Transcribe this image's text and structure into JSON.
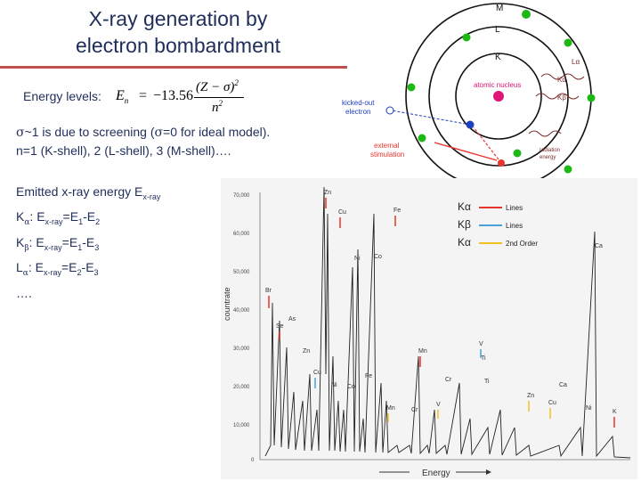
{
  "title": {
    "line1": "X-ray generation by",
    "line2": "electron bombardment"
  },
  "energy_levels": {
    "label": "Energy levels:",
    "formula": {
      "lhs": "E",
      "lhs_sub": "n",
      "equals": "=",
      "coef": "−13.56",
      "numerator": "(Z − σ)",
      "num_exp": "2",
      "denominator": "n",
      "den_exp": "2"
    }
  },
  "screening": {
    "line1_a": "~1 is due to screening (",
    "line1_b": "=0 for ideal model).",
    "line2": "n=1 (K-shell), 2 (L-shell), 3 (M-shell)…."
  },
  "emitted": {
    "heading": "Emitted x-ray energy E",
    "heading_sub": "x-ray",
    "lines": [
      {
        "greek": "α",
        "prefix": "K",
        "text": ": E",
        "sub1": "x-ray",
        "eq": "=E",
        "sub2": "1",
        "minus": "-E",
        "sub3": "2"
      },
      {
        "greek": "β",
        "prefix": "K",
        "text": ": E",
        "sub1": "x-ray",
        "eq": "=E",
        "sub2": "1",
        "minus": "-E",
        "sub3": "3"
      },
      {
        "greek": "α",
        "prefix": "L",
        "text": ": E",
        "sub1": "x-ray",
        "eq": "=E",
        "sub2": "2",
        "minus": "-E",
        "sub3": "3"
      }
    ],
    "ellipsis": "…."
  },
  "atom_diagram": {
    "shells": [
      "M",
      "L",
      "K"
    ],
    "nucleus_label": "atomic nucleus",
    "kicked_out_label_1": "kicked-out",
    "kicked_out_label_2": "electron",
    "external_label_1": "external",
    "external_label_2": "stimulation",
    "radiation_label_1": "radiation",
    "radiation_label_2": "energy",
    "transitions": [
      "Lα",
      "Kα",
      "Kβ"
    ],
    "colors": {
      "electron": "#1eb814",
      "nucleus": "#e0157a",
      "vacancy": "#1f3fbf",
      "incoming": "#e8352b",
      "wave": "#7a2a2a"
    }
  },
  "spectrum": {
    "ylabel": "countrate",
    "xlabel": "Energy",
    "yticks": [
      "70,000",
      "60,000",
      "50,000",
      "40,000",
      "30,000",
      "20,000",
      "10,000",
      "0"
    ],
    "legend": [
      {
        "sym": "Kα",
        "text": "Lines",
        "color": "#e8352b"
      },
      {
        "sym": "Kβ",
        "text": "Lines",
        "color": "#4aa0d8"
      },
      {
        "sym": "Kα",
        "text": "2nd Order",
        "color": "#f0c020"
      }
    ],
    "peak_labels": [
      "Zn",
      "Cu",
      "Fe",
      "Ni",
      "Co",
      "Ca",
      "Br",
      "As",
      "Se",
      "Zn",
      "Cu",
      "Ni",
      "Co",
      "Fe",
      "Mn",
      "V",
      "Ti",
      "Cr",
      "Ti",
      "Mn",
      "Cr",
      "V",
      "Zn",
      "Cu",
      "Ca",
      "Ni",
      "K"
    ]
  }
}
